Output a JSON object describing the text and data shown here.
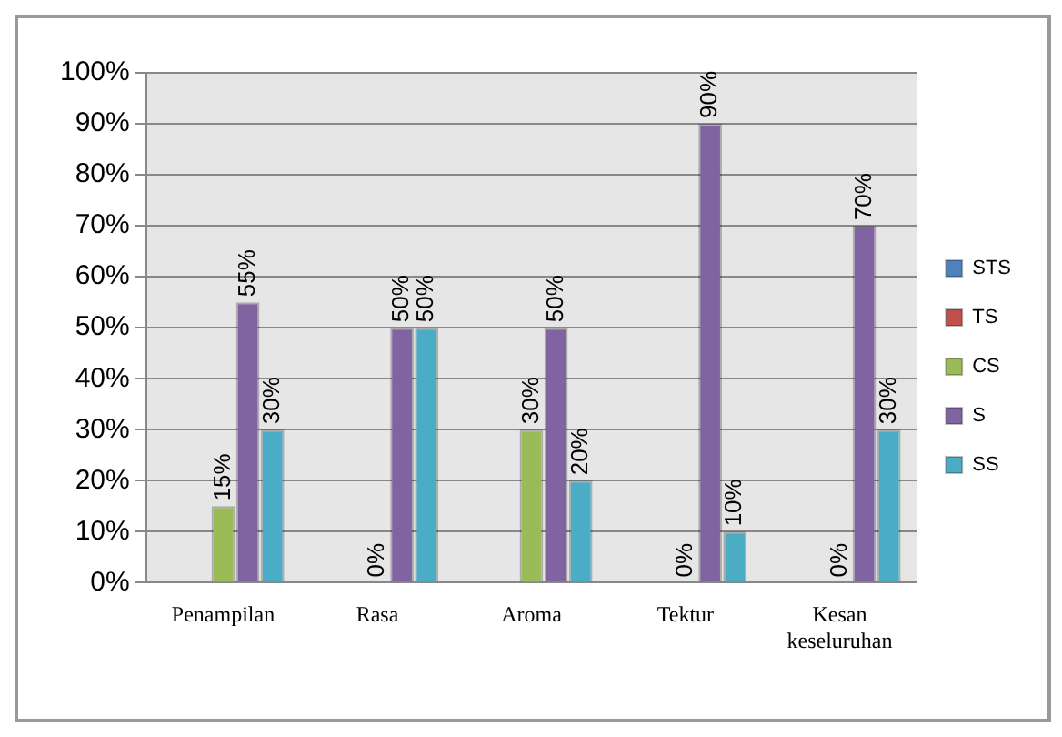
{
  "chart_data": {
    "type": "bar",
    "categories": [
      "Penampilan",
      "Rasa",
      "Aroma",
      "Tektur",
      "Kesan keseluruhan"
    ],
    "series": [
      {
        "name": "STS",
        "color": "#4f81bd",
        "values": [
          0,
          0,
          0,
          0,
          0
        ],
        "value_labels": [
          null,
          null,
          null,
          null,
          null
        ]
      },
      {
        "name": "TS",
        "color": "#c0504d",
        "values": [
          0,
          0,
          0,
          0,
          0
        ],
        "value_labels": [
          null,
          null,
          null,
          null,
          null
        ]
      },
      {
        "name": "CS",
        "color": "#9bbb59",
        "values": [
          15,
          0,
          30,
          0,
          0
        ],
        "value_labels": [
          "15%",
          "0%",
          "30%",
          "0%",
          "0%"
        ]
      },
      {
        "name": "S",
        "color": "#8064a2",
        "values": [
          55,
          50,
          50,
          90,
          70
        ],
        "value_labels": [
          "55%",
          "50%",
          "50%",
          "90%",
          "70%"
        ]
      },
      {
        "name": "SS",
        "color": "#4bacc6",
        "values": [
          30,
          50,
          20,
          10,
          30
        ],
        "value_labels": [
          "30%",
          "50%",
          "20%",
          "10%",
          "30%"
        ]
      }
    ],
    "ylim": [
      0,
      100
    ],
    "yticks": [
      {
        "value": 0,
        "label": "0%"
      },
      {
        "value": 10,
        "label": "10%"
      },
      {
        "value": 20,
        "label": "20%"
      },
      {
        "value": 30,
        "label": "30%"
      },
      {
        "value": 40,
        "label": "40%"
      },
      {
        "value": 50,
        "label": "50%"
      },
      {
        "value": 60,
        "label": "60%"
      },
      {
        "value": 70,
        "label": "70%"
      },
      {
        "value": 80,
        "label": "80%"
      },
      {
        "value": 90,
        "label": "90%"
      },
      {
        "value": 100,
        "label": "100%"
      }
    ],
    "grid": "y",
    "legend": "right"
  }
}
